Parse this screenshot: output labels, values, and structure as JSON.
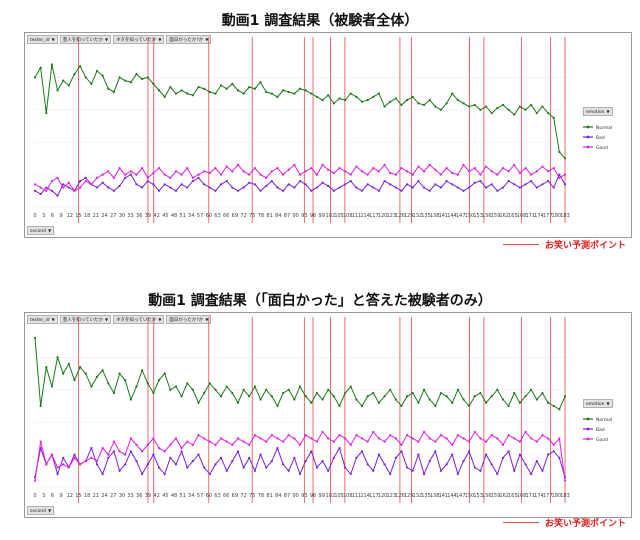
{
  "colors": {
    "normal": "#1a7a1a",
    "bad": "#7a22d8",
    "good": "#e020e0",
    "marker": "#e84a4a"
  },
  "chart_data": [
    {
      "type": "line",
      "title": "動画1 調査結果（被験者全体）",
      "filters": [
        "tester_id",
        "芸人を知っていたか",
        "ネタを知っていたか",
        "面白かったか?か"
      ],
      "axis_field": "second",
      "legend_title": "emotion",
      "x": {
        "min": 0,
        "max": 183,
        "step": 3
      },
      "marker_seconds": [
        15,
        39,
        41,
        60,
        75,
        93,
        96,
        102,
        107,
        126,
        130,
        150,
        155,
        168,
        178,
        183
      ],
      "series": [
        {
          "name": "Normal",
          "values": [
            0.8,
            0.86,
            0.58,
            0.88,
            0.72,
            0.78,
            0.75,
            0.82,
            0.87,
            0.8,
            0.76,
            0.84,
            0.81,
            0.73,
            0.71,
            0.8,
            0.78,
            0.77,
            0.82,
            0.79,
            0.8,
            0.76,
            0.72,
            0.68,
            0.74,
            0.7,
            0.72,
            0.7,
            0.69,
            0.74,
            0.73,
            0.71,
            0.7,
            0.75,
            0.73,
            0.76,
            0.72,
            0.7,
            0.74,
            0.73,
            0.77,
            0.71,
            0.7,
            0.68,
            0.72,
            0.71,
            0.7,
            0.73,
            0.72,
            0.7,
            0.68,
            0.66,
            0.69,
            0.64,
            0.67,
            0.66,
            0.7,
            0.68,
            0.65,
            0.66,
            0.68,
            0.7,
            0.62,
            0.65,
            0.67,
            0.63,
            0.66,
            0.68,
            0.64,
            0.63,
            0.66,
            0.62,
            0.6,
            0.64,
            0.7,
            0.66,
            0.64,
            0.62,
            0.63,
            0.6,
            0.62,
            0.58,
            0.61,
            0.63,
            0.6,
            0.57,
            0.62,
            0.6,
            0.63,
            0.58,
            0.62,
            0.58,
            0.55,
            0.34,
            0.3
          ]
        },
        {
          "name": "Bad",
          "values": [
            0.1,
            0.08,
            0.12,
            0.1,
            0.07,
            0.14,
            0.12,
            0.1,
            0.16,
            0.18,
            0.14,
            0.12,
            0.15,
            0.12,
            0.1,
            0.13,
            0.18,
            0.2,
            0.14,
            0.12,
            0.16,
            0.14,
            0.1,
            0.14,
            0.12,
            0.1,
            0.14,
            0.12,
            0.16,
            0.18,
            0.14,
            0.12,
            0.1,
            0.14,
            0.16,
            0.12,
            0.1,
            0.12,
            0.15,
            0.14,
            0.1,
            0.13,
            0.16,
            0.12,
            0.1,
            0.14,
            0.12,
            0.16,
            0.14,
            0.1,
            0.12,
            0.15,
            0.13,
            0.1,
            0.12,
            0.14,
            0.16,
            0.12,
            0.1,
            0.14,
            0.12,
            0.1,
            0.16,
            0.14,
            0.12,
            0.1,
            0.14,
            0.12,
            0.16,
            0.12,
            0.1,
            0.14,
            0.12,
            0.16,
            0.14,
            0.12,
            0.1,
            0.12,
            0.15,
            0.16,
            0.12,
            0.14,
            0.1,
            0.12,
            0.16,
            0.14,
            0.12,
            0.14,
            0.16,
            0.12,
            0.14,
            0.16,
            0.12,
            0.2,
            0.14
          ]
        },
        {
          "name": "Good",
          "values": [
            0.14,
            0.12,
            0.1,
            0.16,
            0.18,
            0.12,
            0.15,
            0.1,
            0.12,
            0.16,
            0.14,
            0.18,
            0.2,
            0.22,
            0.18,
            0.24,
            0.2,
            0.22,
            0.2,
            0.24,
            0.18,
            0.21,
            0.24,
            0.2,
            0.18,
            0.22,
            0.2,
            0.24,
            0.18,
            0.2,
            0.22,
            0.21,
            0.24,
            0.2,
            0.25,
            0.22,
            0.26,
            0.22,
            0.2,
            0.24,
            0.2,
            0.18,
            0.22,
            0.24,
            0.2,
            0.23,
            0.26,
            0.2,
            0.22,
            0.24,
            0.2,
            0.26,
            0.23,
            0.21,
            0.24,
            0.22,
            0.2,
            0.25,
            0.22,
            0.2,
            0.24,
            0.22,
            0.26,
            0.21,
            0.2,
            0.24,
            0.22,
            0.2,
            0.25,
            0.22,
            0.26,
            0.23,
            0.2,
            0.24,
            0.21,
            0.2,
            0.26,
            0.22,
            0.24,
            0.2,
            0.25,
            0.22,
            0.2,
            0.24,
            0.22,
            0.26,
            0.21,
            0.24,
            0.2,
            0.22,
            0.25,
            0.22,
            0.24,
            0.18,
            0.2
          ]
        }
      ]
    },
    {
      "type": "line",
      "title": "動画1 調査結果（「面白かった」と答えた被験者のみ）",
      "filters": [
        "tester_id",
        "芸人を知っていたか",
        "ネタを知っていたか",
        "面白かったか?か"
      ],
      "axis_field": "second",
      "legend_title": "emotion",
      "x": {
        "min": 0,
        "max": 183,
        "step": 3
      },
      "marker_seconds": [
        15,
        39,
        41,
        60,
        75,
        93,
        96,
        102,
        107,
        126,
        130,
        150,
        155,
        168,
        178,
        183
      ],
      "series": [
        {
          "name": "Normal",
          "values": [
            0.92,
            0.5,
            0.74,
            0.62,
            0.8,
            0.7,
            0.76,
            0.66,
            0.74,
            0.7,
            0.62,
            0.68,
            0.72,
            0.64,
            0.58,
            0.7,
            0.66,
            0.54,
            0.62,
            0.72,
            0.64,
            0.58,
            0.66,
            0.7,
            0.6,
            0.62,
            0.56,
            0.64,
            0.6,
            0.52,
            0.58,
            0.64,
            0.6,
            0.56,
            0.62,
            0.58,
            0.52,
            0.6,
            0.56,
            0.62,
            0.54,
            0.6,
            0.56,
            0.5,
            0.58,
            0.6,
            0.54,
            0.62,
            0.56,
            0.52,
            0.58,
            0.54,
            0.6,
            0.56,
            0.5,
            0.58,
            0.62,
            0.54,
            0.5,
            0.56,
            0.58,
            0.52,
            0.56,
            0.6,
            0.54,
            0.5,
            0.56,
            0.58,
            0.52,
            0.6,
            0.54,
            0.5,
            0.58,
            0.56,
            0.52,
            0.6,
            0.54,
            0.5,
            0.56,
            0.58,
            0.52,
            0.56,
            0.6,
            0.54,
            0.5,
            0.58,
            0.52,
            0.56,
            0.6,
            0.54,
            0.58,
            0.52,
            0.5,
            0.48,
            0.56
          ]
        },
        {
          "name": "Bad",
          "values": [
            0.06,
            0.24,
            0.14,
            0.2,
            0.08,
            0.18,
            0.12,
            0.2,
            0.14,
            0.16,
            0.24,
            0.14,
            0.08,
            0.18,
            0.22,
            0.1,
            0.14,
            0.22,
            0.16,
            0.08,
            0.14,
            0.2,
            0.12,
            0.08,
            0.18,
            0.14,
            0.22,
            0.12,
            0.16,
            0.2,
            0.12,
            0.08,
            0.14,
            0.18,
            0.1,
            0.16,
            0.22,
            0.12,
            0.18,
            0.1,
            0.2,
            0.12,
            0.16,
            0.24,
            0.14,
            0.1,
            0.18,
            0.08,
            0.16,
            0.22,
            0.12,
            0.16,
            0.1,
            0.18,
            0.24,
            0.12,
            0.08,
            0.18,
            0.22,
            0.14,
            0.1,
            0.2,
            0.14,
            0.08,
            0.18,
            0.22,
            0.12,
            0.1,
            0.2,
            0.08,
            0.16,
            0.22,
            0.1,
            0.14,
            0.2,
            0.08,
            0.16,
            0.22,
            0.12,
            0.1,
            0.2,
            0.14,
            0.08,
            0.18,
            0.22,
            0.1,
            0.2,
            0.14,
            0.08,
            0.16,
            0.1,
            0.2,
            0.22,
            0.18,
            0.06
          ]
        },
        {
          "name": "Good",
          "values": [
            0.04,
            0.28,
            0.14,
            0.2,
            0.12,
            0.14,
            0.12,
            0.18,
            0.14,
            0.16,
            0.18,
            0.16,
            0.24,
            0.2,
            0.28,
            0.22,
            0.2,
            0.3,
            0.26,
            0.22,
            0.26,
            0.3,
            0.24,
            0.22,
            0.26,
            0.3,
            0.24,
            0.28,
            0.26,
            0.32,
            0.3,
            0.28,
            0.26,
            0.3,
            0.28,
            0.26,
            0.3,
            0.28,
            0.26,
            0.32,
            0.3,
            0.28,
            0.32,
            0.3,
            0.28,
            0.32,
            0.3,
            0.26,
            0.32,
            0.3,
            0.28,
            0.34,
            0.3,
            0.28,
            0.32,
            0.3,
            0.26,
            0.32,
            0.3,
            0.28,
            0.34,
            0.3,
            0.28,
            0.32,
            0.3,
            0.26,
            0.32,
            0.3,
            0.28,
            0.34,
            0.3,
            0.28,
            0.32,
            0.3,
            0.26,
            0.32,
            0.3,
            0.28,
            0.34,
            0.3,
            0.28,
            0.32,
            0.3,
            0.26,
            0.32,
            0.3,
            0.28,
            0.34,
            0.3,
            0.28,
            0.32,
            0.3,
            0.26,
            0.3,
            0.04
          ]
        }
      ]
    }
  ],
  "marker_note": "お笑い予測ポイント"
}
